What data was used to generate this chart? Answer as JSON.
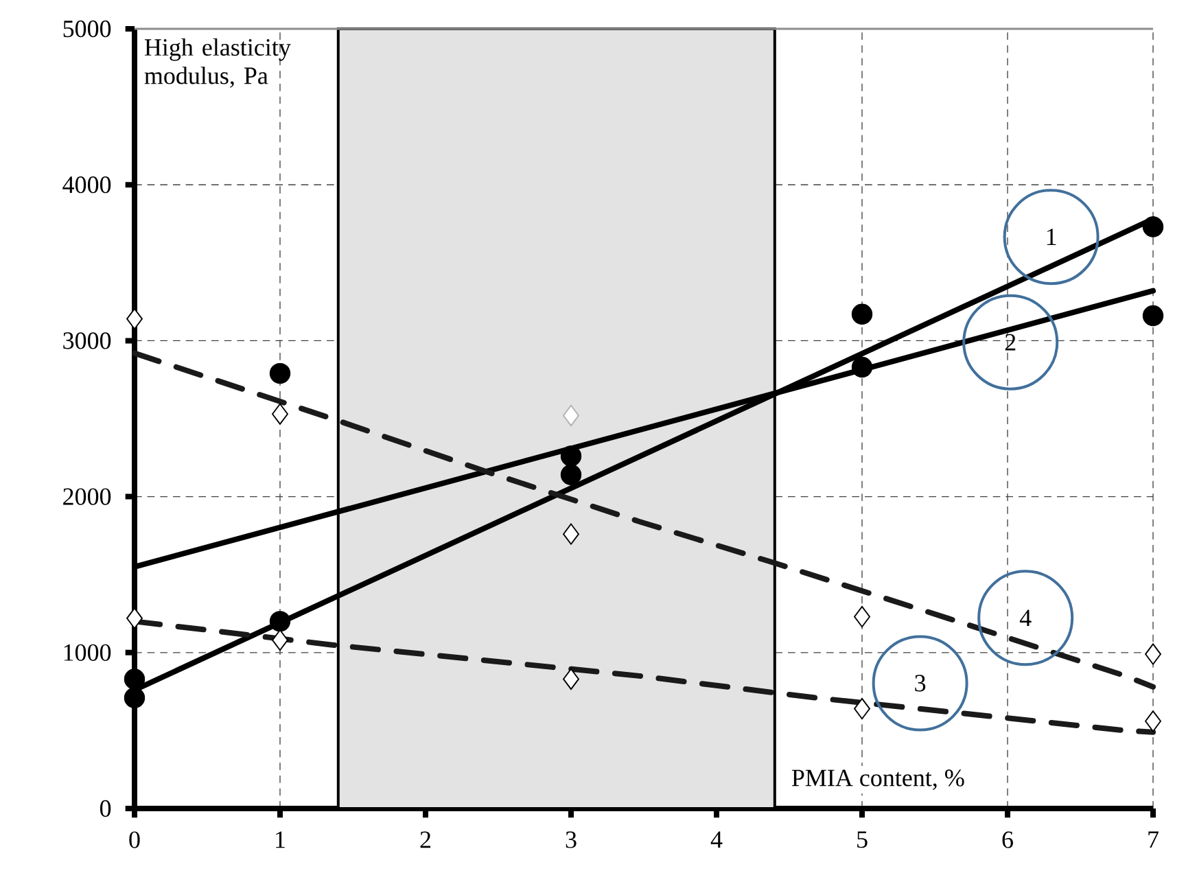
{
  "chart_data": {
    "type": "scatter",
    "xlabel": "PMIA content, %",
    "ylabel": "High elasticity modulus, Pa",
    "xlim": [
      0,
      7
    ],
    "ylim": [
      0,
      5000
    ],
    "xticks": [
      0,
      1,
      2,
      3,
      4,
      5,
      6,
      7
    ],
    "yticks": [
      0,
      1000,
      2000,
      3000,
      4000,
      5000
    ],
    "grid": true,
    "bands": [
      {
        "axis": "x",
        "from": 1.4,
        "to": 4.4,
        "color": "#e3e3e3"
      }
    ],
    "series": [
      {
        "marker": "circle",
        "color": "#000000",
        "x": [
          0,
          1,
          3,
          5,
          7
        ],
        "values": [
          710,
          1200,
          2140,
          3170,
          3730
        ]
      },
      {
        "marker": "circle",
        "color": "#000000",
        "x": [
          0,
          1,
          3,
          5,
          7
        ],
        "values": [
          830,
          2790,
          2260,
          2830,
          3160
        ]
      },
      {
        "marker": "diamond",
        "color": "#000000",
        "x": [
          0,
          1,
          3,
          5,
          7
        ],
        "values": [
          1220,
          1080,
          830,
          640,
          560
        ]
      },
      {
        "marker": "diamond",
        "color": "#000000",
        "x": [
          0,
          1,
          3,
          5,
          7
        ],
        "values": [
          3140,
          2530,
          1760,
          1230,
          990
        ]
      },
      {
        "marker": "diamond",
        "color": "#b0b0b0",
        "x": [
          3
        ],
        "values": [
          2520
        ]
      },
      {
        "type": "line",
        "name": "1",
        "marker": "none",
        "line_style": "solid",
        "color": "#000000",
        "x": [
          0,
          7
        ],
        "values": [
          760,
          3780
        ]
      },
      {
        "type": "line",
        "name": "2",
        "marker": "none",
        "line_style": "solid",
        "color": "#000000",
        "x": [
          0,
          7
        ],
        "values": [
          1550,
          3320
        ]
      },
      {
        "type": "line",
        "name": "3",
        "marker": "none",
        "line_style": "dashed",
        "color": "#1a1a1a",
        "x": [
          0,
          1.35,
          3.47,
          4.68,
          6.81,
          7
        ],
        "values": [
          1200,
          1050,
          850,
          710,
          500,
          490
        ]
      },
      {
        "type": "line",
        "name": "4",
        "marker": "none",
        "line_style": "dashed",
        "color": "#1a1a1a",
        "x": [
          0,
          1.39,
          2.45,
          3.47,
          4.38,
          5.59,
          6.81,
          7
        ],
        "values": [
          2920,
          2490,
          2150,
          1840,
          1580,
          1220,
          850,
          780
        ]
      }
    ]
  }
}
